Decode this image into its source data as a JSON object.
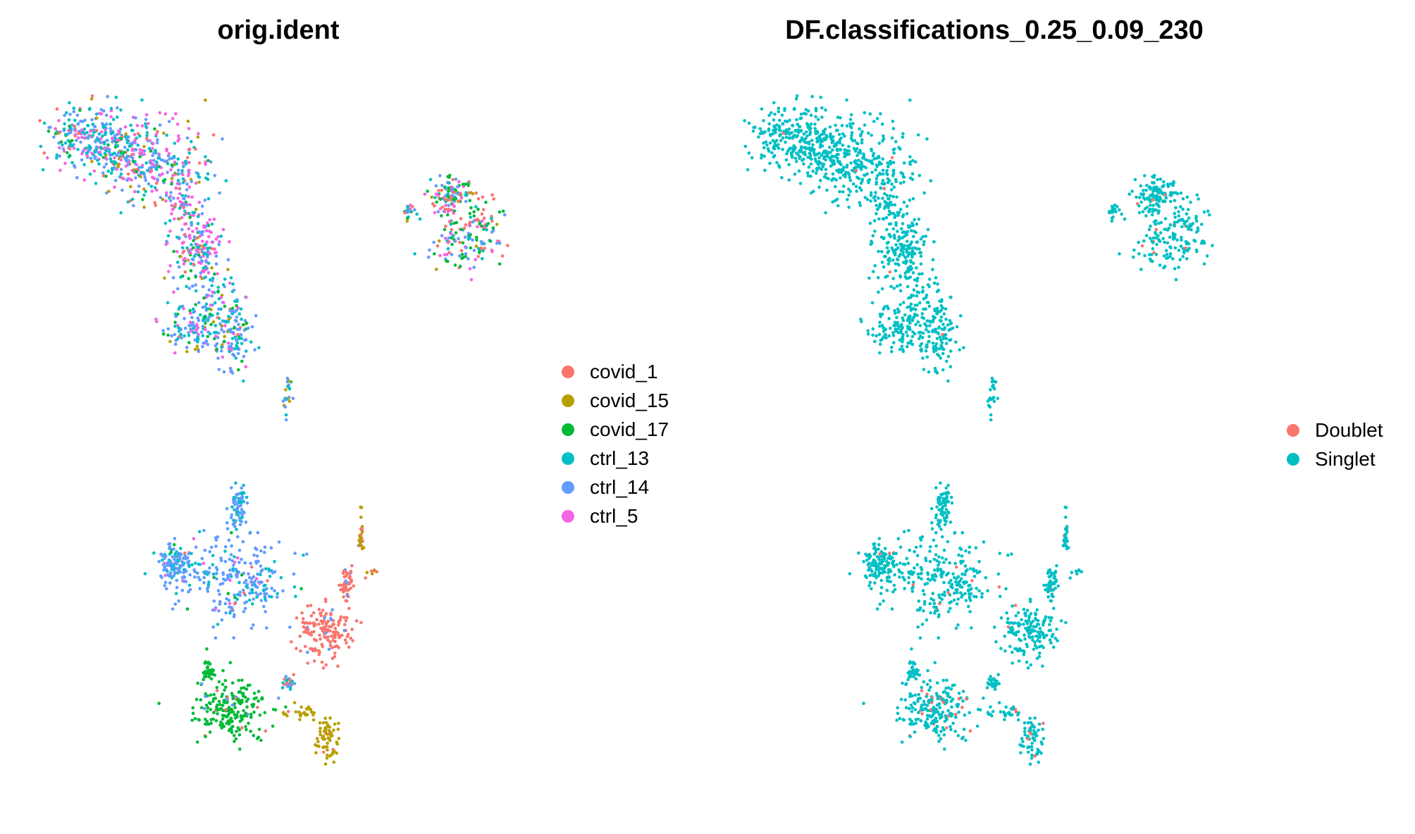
{
  "chart_data": [
    {
      "type": "scatter",
      "title": "orig.ident",
      "xlabel": "",
      "ylabel": "",
      "grid": false,
      "axes": false,
      "legend_position": "right",
      "legend": [
        {
          "label": "covid_1",
          "color": "#F8766D"
        },
        {
          "label": "covid_15",
          "color": "#B79F00"
        },
        {
          "label": "covid_17",
          "color": "#00BA38"
        },
        {
          "label": "ctrl_13",
          "color": "#00BFC4"
        },
        {
          "label": "ctrl_14",
          "color": "#619CFF"
        },
        {
          "label": "ctrl_5",
          "color": "#F564E3"
        }
      ],
      "clusters": [
        {
          "composition": {
            "covid_1": 0.08,
            "covid_15": 0.05,
            "covid_17": 0.07,
            "ctrl_13": 0.3,
            "ctrl_14": 0.3,
            "ctrl_5": 0.2
          }
        },
        {
          "composition": {
            "covid_1": 0.08,
            "covid_15": 0.05,
            "covid_17": 0.05,
            "ctrl_13": 0.25,
            "ctrl_14": 0.22,
            "ctrl_5": 0.35
          }
        },
        {
          "composition": {
            "covid_1": 0.04,
            "covid_15": 0.04,
            "covid_17": 0.1,
            "ctrl_13": 0.32,
            "ctrl_14": 0.4,
            "ctrl_5": 0.1
          }
        },
        {
          "composition": {
            "covid_1": 0.22,
            "covid_15": 0.03,
            "covid_17": 0.3,
            "ctrl_13": 0.15,
            "ctrl_14": 0.15,
            "ctrl_5": 0.15
          }
        },
        {
          "composition": {
            "covid_15": 0.4,
            "ctrl_13": 0.2,
            "ctrl_14": 0.4
          }
        },
        {
          "composition": {
            "covid_1": 0.02,
            "ctrl_13": 0.2,
            "ctrl_14": 0.72,
            "ctrl_5": 0.03,
            "covid_17": 0.03
          }
        },
        {
          "composition": {
            "covid_1": 0.95,
            "ctrl_14": 0.05
          }
        },
        {
          "composition": {
            "covid_1": 0.05,
            "covid_17": 0.92,
            "ctrl_14": 0.03
          }
        },
        {
          "composition": {
            "covid_15": 0.95,
            "covid_1": 0.05
          }
        },
        {
          "composition": {
            "covid_15": 0.6,
            "ctrl_14": 0.1,
            "covid_1": 0.3
          }
        },
        {
          "composition": {
            "ctrl_13": 0.3,
            "ctrl_14": 0.5,
            "covid_1": 0.2
          }
        }
      ]
    },
    {
      "type": "scatter",
      "title": "DF.classifications_0.25_0.09_230",
      "xlabel": "",
      "ylabel": "",
      "grid": false,
      "axes": false,
      "legend_position": "right",
      "legend": [
        {
          "label": "Doublet",
          "color": "#F8766D"
        },
        {
          "label": "Singlet",
          "color": "#00BFC4"
        }
      ],
      "clusters": [
        {
          "doublet_fraction": 0.005
        },
        {
          "doublet_fraction": 0.01
        },
        {
          "doublet_fraction": 0.005
        },
        {
          "doublet_fraction": 0.03
        },
        {
          "doublet_fraction": 0.1
        },
        {
          "doublet_fraction": 0.03
        },
        {
          "doublet_fraction": 0.02
        },
        {
          "doublet_fraction": 0.12
        },
        {
          "doublet_fraction": 0.08
        },
        {
          "doublet_fraction": 0.05
        },
        {
          "doublet_fraction": 0.02
        }
      ]
    }
  ]
}
